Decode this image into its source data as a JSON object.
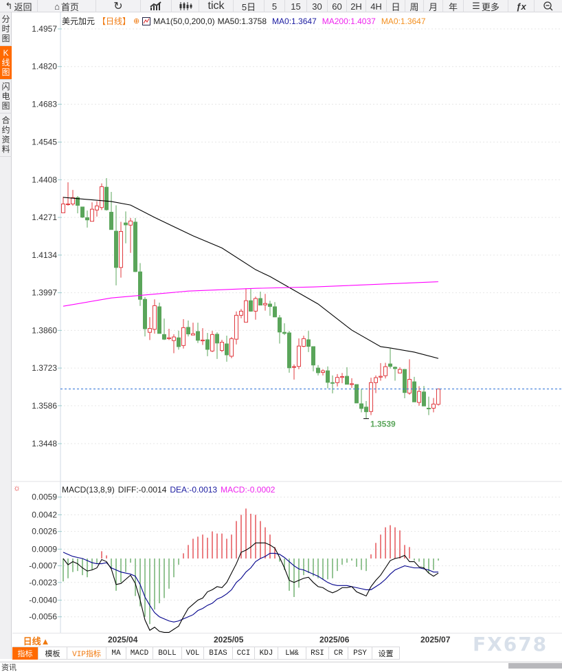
{
  "toolbar": {
    "back": "返回",
    "home": "首页",
    "tick": "tick",
    "five_day": "5日",
    "periods": [
      "5",
      "15",
      "30",
      "60",
      "2H",
      "4H",
      "日",
      "周",
      "月",
      "年"
    ],
    "more": "更多"
  },
  "sidebar": [
    [
      "分",
      "时",
      "图"
    ],
    [
      "K",
      "线",
      "图"
    ],
    [
      "闪",
      "电",
      "图"
    ],
    [
      "合",
      "约",
      "资",
      "料"
    ]
  ],
  "legend": {
    "symbol": "美元加元",
    "period": "【日线】",
    "ma_name": "MA1(50,0,200,0)",
    "ma50": "MA50:1.3758",
    "ma0": "MA0:1.3647",
    "ma200": "MA200:1.4037",
    "ma0b": "MA0:1.3647"
  },
  "macd_legend": {
    "name": "MACD(13,8,9)",
    "diff": "DIFF:-0.0014",
    "dea": "DEA:-0.0013",
    "macd": "MACD:-0.0002"
  },
  "colors": {
    "up": "#e0393e",
    "down": "#5aa55a",
    "ma50": "#000000",
    "ma200": "#ff00ff",
    "diff": "#000000",
    "dea": "#00008b",
    "last": "#2a6fd6",
    "accent": "#ff6a00"
  },
  "low_marker": "1.3539",
  "bottom": {
    "period": "日线▲",
    "tabs": [
      "指标",
      "模板",
      "VIP指标",
      "MA",
      "MACD",
      "BOLL",
      "VOL",
      "BIAS",
      "CCI",
      "KDJ",
      "LW&",
      "RSI",
      "CR",
      "PSY",
      "设置"
    ],
    "watermark": "FX678",
    "news": "资讯"
  },
  "chart_data": [
    {
      "type": "candlestick",
      "title": "美元加元 日线",
      "y_ticks": [
        "1.4957",
        "1.4820",
        "1.4683",
        "1.4545",
        "1.4408",
        "1.4271",
        "1.4134",
        "1.3997",
        "1.3860",
        "1.3723",
        "1.3586",
        "1.3448"
      ],
      "ylim": [
        1.3448,
        1.4957
      ],
      "last_price": 1.3647,
      "x_ticks": [
        {
          "label": "2025/04",
          "index": 9
        },
        {
          "label": "2025/05",
          "index": 31
        },
        {
          "label": "2025/06",
          "index": 53
        },
        {
          "label": "2025/07",
          "index": 74
        }
      ],
      "ohlc": [
        [
          1.4288,
          1.4346,
          1.4288,
          1.432
        ],
        [
          1.4318,
          1.4399,
          1.4314,
          1.432
        ],
        [
          1.432,
          1.4371,
          1.4314,
          1.4343
        ],
        [
          1.4343,
          1.4349,
          1.4286,
          1.4315
        ],
        [
          1.4309,
          1.4309,
          1.4269,
          1.4272
        ],
        [
          1.427,
          1.4296,
          1.4234,
          1.4262
        ],
        [
          1.4257,
          1.4326,
          1.4257,
          1.4301
        ],
        [
          1.4298,
          1.433,
          1.4274,
          1.4313
        ],
        [
          1.4307,
          1.4395,
          1.4298,
          1.4383
        ],
        [
          1.4381,
          1.4414,
          1.4296,
          1.4299
        ],
        [
          1.429,
          1.4364,
          1.4227,
          1.4227
        ],
        [
          1.4221,
          1.4315,
          1.4024,
          1.4089
        ],
        [
          1.4089,
          1.4255,
          1.4052,
          1.422
        ],
        [
          1.4251,
          1.4293,
          1.4177,
          1.4244
        ],
        [
          1.4243,
          1.4269,
          1.4142,
          1.4258
        ],
        [
          1.4254,
          1.4269,
          1.4072,
          1.4074
        ],
        [
          1.4073,
          1.4105,
          1.3949,
          1.3973
        ],
        [
          1.3973,
          1.3981,
          1.3838,
          1.3866
        ],
        [
          1.3853,
          1.3908,
          1.3825,
          1.3867
        ],
        [
          1.3864,
          1.3973,
          1.3848,
          1.395
        ],
        [
          1.3946,
          1.3961,
          1.3849,
          1.3849
        ],
        [
          1.3845,
          1.3903,
          1.3825,
          1.3828
        ],
        [
          1.383,
          1.3866,
          1.3825,
          1.3833
        ],
        [
          1.3823,
          1.3846,
          1.3777,
          1.3836
        ],
        [
          1.3833,
          1.3859,
          1.379,
          1.3801
        ],
        [
          1.3805,
          1.3901,
          1.3794,
          1.387
        ],
        [
          1.3871,
          1.3896,
          1.3838,
          1.3847
        ],
        [
          1.3843,
          1.3888,
          1.3843,
          1.3848
        ],
        [
          1.3856,
          1.3888,
          1.3814,
          1.3824
        ],
        [
          1.3822,
          1.3868,
          1.3807,
          1.3825
        ],
        [
          1.3826,
          1.3851,
          1.3766,
          1.3791
        ],
        [
          1.3785,
          1.3858,
          1.3781,
          1.3845
        ],
        [
          1.3846,
          1.3853,
          1.3756,
          1.3814
        ],
        [
          1.3787,
          1.3826,
          1.3781,
          1.3817
        ],
        [
          1.3811,
          1.3841,
          1.3746,
          1.3771
        ],
        [
          1.3766,
          1.3836,
          1.3759,
          1.383
        ],
        [
          1.3828,
          1.3929,
          1.3809,
          1.3915
        ],
        [
          1.3915,
          1.3938,
          1.3904,
          1.393
        ],
        [
          1.389,
          1.4013,
          1.389,
          1.3968
        ],
        [
          1.3968,
          1.4013,
          1.3928,
          1.393
        ],
        [
          1.393,
          1.3983,
          1.3899,
          1.3976
        ],
        [
          1.3976,
          1.4001,
          1.3952,
          1.3952
        ],
        [
          1.3953,
          1.3993,
          1.3932,
          1.3958
        ],
        [
          1.3956,
          1.3968,
          1.3913,
          1.3947
        ],
        [
          1.3946,
          1.3963,
          1.3908,
          1.3909
        ],
        [
          1.3906,
          1.3916,
          1.3812,
          1.3854
        ],
        [
          1.3853,
          1.3886,
          1.3843,
          1.3849
        ],
        [
          1.3851,
          1.3858,
          1.3706,
          1.3724
        ],
        [
          1.3726,
          1.3736,
          1.3681,
          1.3728
        ],
        [
          1.3729,
          1.3831,
          1.3719,
          1.3803
        ],
        [
          1.3802,
          1.3841,
          1.3799,
          1.383
        ],
        [
          1.3826,
          1.3858,
          1.3781,
          1.3802
        ],
        [
          1.3801,
          1.3801,
          1.3711,
          1.3734
        ],
        [
          1.3723,
          1.3734,
          1.3696,
          1.3706
        ],
        [
          1.3707,
          1.3719,
          1.3696,
          1.3713
        ],
        [
          1.3713,
          1.3729,
          1.3649,
          1.3671
        ],
        [
          1.367,
          1.3696,
          1.3631,
          1.3668
        ],
        [
          1.367,
          1.3701,
          1.3656,
          1.3689
        ],
        [
          1.3689,
          1.3705,
          1.3668,
          1.3692
        ],
        [
          1.3693,
          1.3726,
          1.3664,
          1.3664
        ],
        [
          1.3663,
          1.3686,
          1.3651,
          1.3666
        ],
        [
          1.3663,
          1.3663,
          1.3596,
          1.3596
        ],
        [
          1.3593,
          1.3647,
          1.3562,
          1.3576
        ],
        [
          1.3581,
          1.3603,
          1.3539,
          1.3564
        ],
        [
          1.3565,
          1.3688,
          1.3552,
          1.367
        ],
        [
          1.367,
          1.3696,
          1.3632,
          1.3688
        ],
        [
          1.369,
          1.3741,
          1.3677,
          1.3693
        ],
        [
          1.3695,
          1.3742,
          1.3685,
          1.3728
        ],
        [
          1.3738,
          1.3794,
          1.3721,
          1.3729
        ],
        [
          1.3726,
          1.3729,
          1.3677,
          1.3721
        ],
        [
          1.3705,
          1.3726,
          1.3705,
          1.3718
        ],
        [
          1.3718,
          1.3718,
          1.3613,
          1.3634
        ],
        [
          1.3632,
          1.3755,
          1.3626,
          1.3682
        ],
        [
          1.3673,
          1.3691,
          1.3599,
          1.36
        ],
        [
          1.3598,
          1.3657,
          1.3586,
          1.3638
        ],
        [
          1.3636,
          1.3658,
          1.3585,
          1.3585
        ],
        [
          1.3577,
          1.3619,
          1.3552,
          1.3576
        ],
        [
          1.3577,
          1.3614,
          1.3562,
          1.3592
        ],
        [
          1.3591,
          1.3645,
          1.3587,
          1.3647
        ]
      ],
      "ma50": {
        "index": [
          0,
          10,
          14,
          19,
          27,
          33,
          40,
          43,
          53,
          60,
          66,
          68,
          73,
          78
        ],
        "values": [
          1.4344,
          1.4329,
          1.4316,
          1.4271,
          1.4204,
          1.416,
          1.4081,
          1.4056,
          1.3956,
          1.3861,
          1.3801,
          1.3796,
          1.3781,
          1.3758
        ]
      },
      "ma200": {
        "index": [
          0,
          10,
          26,
          40,
          52,
          78
        ],
        "values": [
          1.3948,
          1.3978,
          1.4003,
          1.4013,
          1.4018,
          1.4037
        ]
      }
    },
    {
      "type": "macd",
      "y_ticks": [
        "0.0059",
        "0.0042",
        "0.0026",
        "0.0009",
        "-0.0007",
        "-0.0023",
        "-0.0040",
        "-0.0056"
      ],
      "ylim": [
        -0.0056,
        0.0059
      ],
      "hist": [
        -0.0022,
        -0.0019,
        -0.0013,
        -0.0012,
        -0.0016,
        -0.0018,
        -0.0011,
        -0.0005,
        0.0007,
        0.0003,
        -0.001,
        -0.0031,
        -0.0023,
        -0.0013,
        -0.0004,
        -0.0036,
        -0.0046,
        -0.0056,
        -0.0063,
        -0.0049,
        -0.0043,
        -0.0038,
        -0.0029,
        -0.0018,
        -0.0006,
        0.0005,
        0.0013,
        0.0019,
        0.0021,
        0.0023,
        0.002,
        0.0026,
        0.0024,
        0.0024,
        0.0019,
        0.0023,
        0.0036,
        0.0042,
        0.0048,
        0.0043,
        0.0042,
        0.0036,
        0.003,
        0.0023,
        0.0011,
        -0.0003,
        -0.0011,
        -0.0031,
        -0.0037,
        -0.0028,
        -0.0016,
        -0.0014,
        -0.0017,
        -0.0019,
        -0.002,
        -0.002,
        -0.0019,
        -0.0012,
        -0.0006,
        -0.0004,
        -0.0002,
        -0.0008,
        -0.0011,
        -0.0012,
        0.0004,
        0.0015,
        0.0023,
        0.003,
        0.0032,
        0.003,
        0.0027,
        0.0013,
        0.0011,
        -0.0002,
        -0.0003,
        -0.001,
        -0.0014,
        -0.0011,
        -0.0002
      ],
      "diff": [
        0.0,
        -0.0006,
        -0.0003,
        -0.0005,
        -0.0009,
        -0.0012,
        -0.0011,
        -0.0009,
        -0.0001,
        -0.0003,
        -0.001,
        -0.0025,
        -0.0024,
        -0.002,
        -0.0016,
        -0.0024,
        -0.004,
        -0.0059,
        -0.0069,
        -0.0066,
        -0.007,
        -0.0071,
        -0.0071,
        -0.0068,
        -0.0065,
        -0.0056,
        -0.0048,
        -0.0044,
        -0.004,
        -0.0038,
        -0.0032,
        -0.003,
        -0.0027,
        -0.0028,
        -0.0023,
        -0.0014,
        -0.0005,
        0.0006,
        0.0008,
        0.0011,
        0.0015,
        0.0015,
        0.0015,
        0.0013,
        0.001,
        0.0001,
        -0.0009,
        -0.0021,
        -0.0023,
        -0.0021,
        -0.0019,
        -0.0018,
        -0.0023,
        -0.0027,
        -0.0028,
        -0.0031,
        -0.0033,
        -0.0031,
        -0.0028,
        -0.0028,
        -0.0027,
        -0.0032,
        -0.0034,
        -0.0036,
        -0.0027,
        -0.0021,
        -0.0016,
        -0.0009,
        -0.0002,
        0.0,
        0.0001,
        0.0003,
        -0.0003,
        -0.0003,
        -0.0008,
        -0.0009,
        -0.0014,
        -0.0017,
        -0.0014
      ],
      "dea": [
        0.0006,
        0.0004,
        0.0002,
        0.0001,
        0.0,
        -0.0002,
        -0.0004,
        -0.0005,
        -0.0005,
        -0.0004,
        -0.0009,
        -0.0011,
        -0.0013,
        -0.0014,
        -0.0015,
        -0.0017,
        -0.0025,
        -0.0037,
        -0.0045,
        -0.0052,
        -0.0056,
        -0.0058,
        -0.006,
        -0.0061,
        -0.006,
        -0.0058,
        -0.0056,
        -0.0054,
        -0.005,
        -0.0048,
        -0.0045,
        -0.0043,
        -0.0039,
        -0.0037,
        -0.0034,
        -0.003,
        -0.0023,
        -0.0019,
        -0.0013,
        -0.0009,
        -0.0003,
        0.0,
        0.0002,
        0.0005,
        0.0005,
        0.0004,
        0.0001,
        -0.0003,
        -0.0007,
        -0.001,
        -0.0011,
        -0.0013,
        -0.0015,
        -0.0017,
        -0.002,
        -0.0023,
        -0.0025,
        -0.0026,
        -0.0026,
        -0.0026,
        -0.0027,
        -0.0028,
        -0.0029,
        -0.003,
        -0.003,
        -0.0027,
        -0.0024,
        -0.002,
        -0.0015,
        -0.0011,
        -0.0009,
        -0.0007,
        -0.0008,
        -0.0009,
        -0.0009,
        -0.001,
        -0.0011,
        -0.0013,
        -0.0013
      ]
    }
  ]
}
